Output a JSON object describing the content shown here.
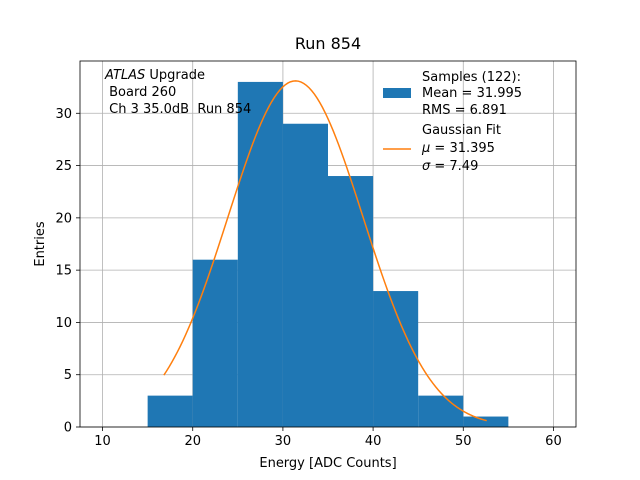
{
  "chart_data": {
    "type": "bar",
    "title": "Run 854",
    "xlabel": "Energy [ADC Counts]",
    "ylabel": "Entries",
    "xlim": [
      7.5,
      62.5
    ],
    "ylim": [
      0,
      35
    ],
    "xticks": [
      10,
      20,
      30,
      40,
      50,
      60
    ],
    "yticks": [
      0,
      5,
      10,
      15,
      20,
      25,
      30
    ],
    "grid": true,
    "bins": [
      {
        "x0": 15,
        "x1": 20,
        "count": 3
      },
      {
        "x0": 20,
        "x1": 25,
        "count": 16
      },
      {
        "x0": 25,
        "x1": 30,
        "count": 33
      },
      {
        "x0": 30,
        "x1": 35,
        "count": 29
      },
      {
        "x0": 35,
        "x1": 40,
        "count": 24
      },
      {
        "x0": 40,
        "x1": 45,
        "count": 13
      },
      {
        "x0": 45,
        "x1": 50,
        "count": 3
      },
      {
        "x0": 50,
        "x1": 55,
        "count": 1
      }
    ],
    "fit": {
      "mu": 31.395,
      "sigma": 7.49,
      "amplitude": 33.1,
      "x_range": [
        16.8,
        52.6
      ]
    },
    "colors": {
      "bars": "#1f77b4",
      "fit": "#ff7f0e"
    },
    "legend": {
      "placement": "top-right",
      "samples": {
        "line1": "Samples (122):",
        "line2": "Mean = 31.995",
        "line3": "RMS = 6.891"
      },
      "fit": {
        "line1": "Gaussian Fit",
        "mu_text": " = 31.395",
        "sigma_text": " = 7.49"
      }
    },
    "annotation": {
      "experiment": "ATLAS",
      "upgrade": " Upgrade",
      "board": " Board 260",
      "channel": " Ch 3 35.0dB  Run 854"
    }
  }
}
